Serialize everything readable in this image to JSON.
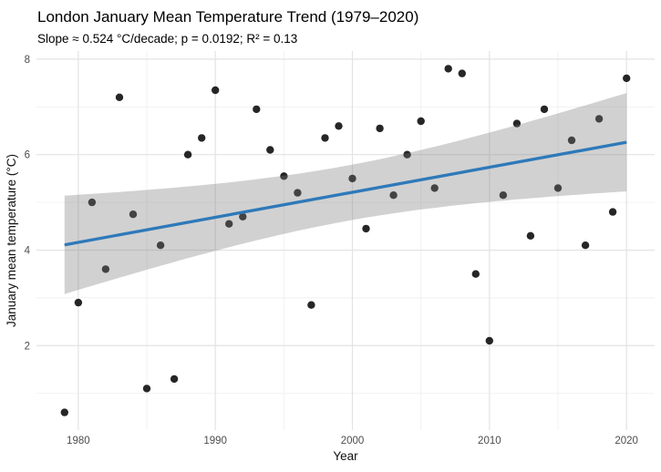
{
  "title": "London January Mean Temperature Trend (1979–2020)",
  "subtitle": "Slope ≈ 0.524 °C/decade; p = 0.0192; R² = 0.13",
  "chart_data": {
    "type": "scatter",
    "title": "London January Mean Temperature Trend (1979–2020)",
    "subtitle": "Slope ≈ 0.524 °C/decade; p = 0.0192; R² = 0.13",
    "xlabel": "Year",
    "ylabel": "January mean temperature (°C)",
    "xlim": [
      1976.95,
      2022.05
    ],
    "ylim": [
      0.23,
      8.17
    ],
    "x_ticks": [
      1980,
      1990,
      2000,
      2010,
      2020
    ],
    "x_minor_ticks": [
      1985,
      1995,
      2005,
      2015
    ],
    "y_ticks": [
      2,
      4,
      6,
      8
    ],
    "y_minor_ticks": [
      1,
      3,
      5,
      7
    ],
    "grid": true,
    "legend": "none",
    "x": [
      1979,
      1980,
      1981,
      1982,
      1983,
      1984,
      1985,
      1986,
      1987,
      1988,
      1989,
      1990,
      1991,
      1992,
      1993,
      1994,
      1995,
      1996,
      1997,
      1998,
      1999,
      2000,
      2001,
      2002,
      2003,
      2004,
      2005,
      2006,
      2007,
      2008,
      2009,
      2010,
      2011,
      2012,
      2013,
      2014,
      2015,
      2016,
      2017,
      2018,
      2019,
      2020
    ],
    "y": [
      0.6,
      2.9,
      5.0,
      3.6,
      7.2,
      4.75,
      1.1,
      4.1,
      1.3,
      6.0,
      6.35,
      7.35,
      4.55,
      4.7,
      6.95,
      6.1,
      5.55,
      5.2,
      2.85,
      6.35,
      6.6,
      5.5,
      4.45,
      6.55,
      5.15,
      6.0,
      6.7,
      5.3,
      7.8,
      7.7,
      3.5,
      2.1,
      5.15,
      6.65,
      4.3,
      6.95,
      5.3,
      6.3,
      4.1,
      6.75,
      4.8,
      7.6
    ],
    "trend": {
      "x_start": 1979,
      "y_start": 4.11,
      "x_end": 2020,
      "y_end": 6.26
    },
    "ci_band": {
      "x_mean": 1999.5,
      "half_width_mid": 0.58,
      "half_width_edge": 1.03
    },
    "stats": {
      "slope_per_decade": 0.524,
      "p": 0.0192,
      "r2": 0.13
    }
  },
  "colors": {
    "background": "#ffffff",
    "point": "#000000",
    "trend_line": "#2e79b9",
    "ci_band": "rgba(124,124,124,0.35)",
    "grid_major": "#e3e3e3",
    "grid_minor": "#f0f0f0",
    "tick_text": "#4d4d4d",
    "axis_title_text": "#111111",
    "title_text": "#000000"
  }
}
